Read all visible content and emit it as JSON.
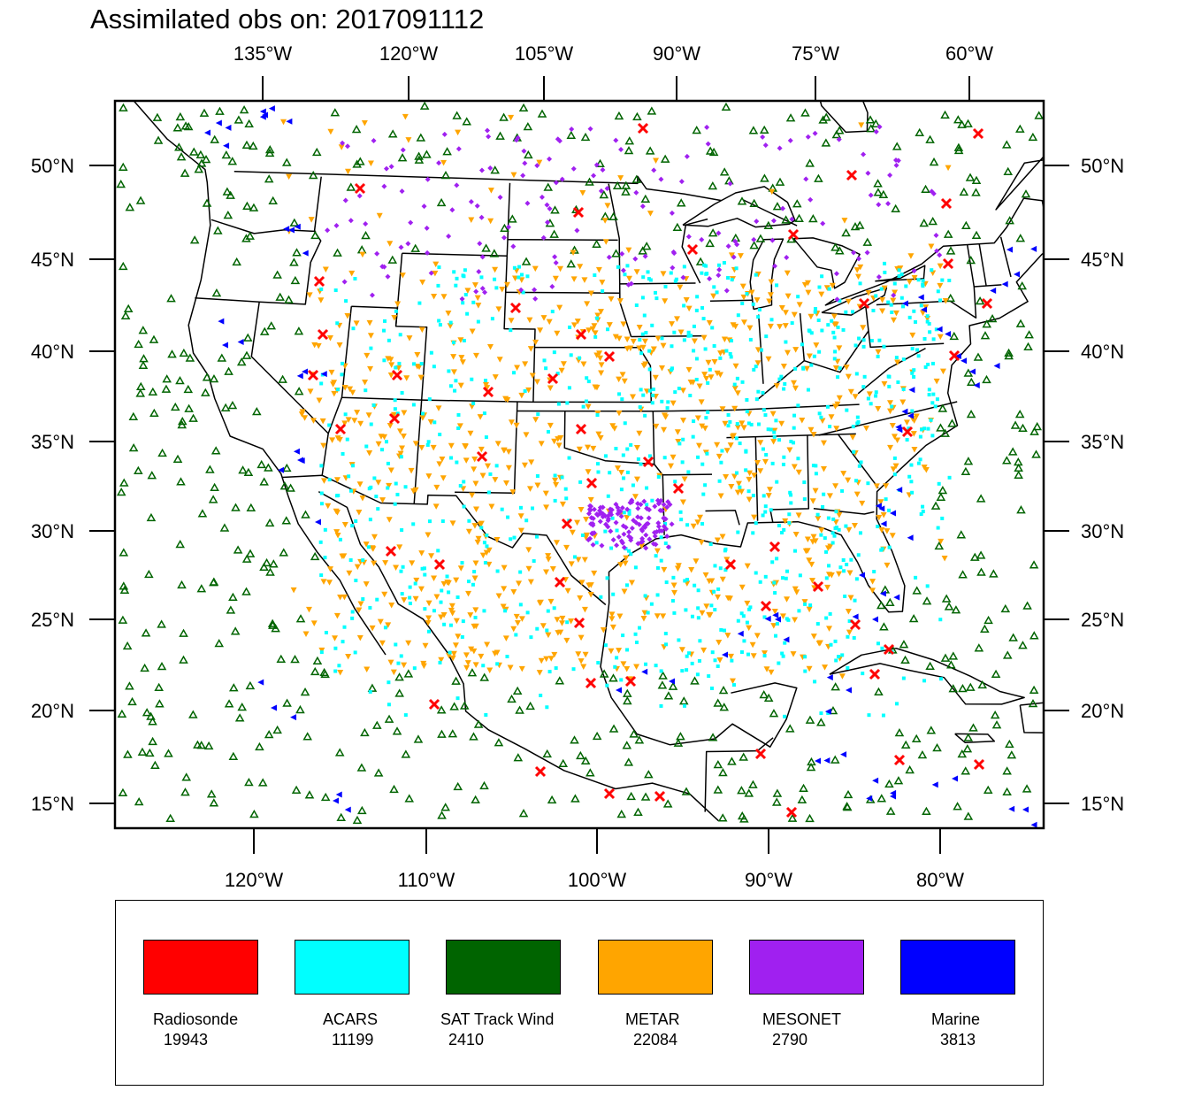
{
  "title": "Assimilated obs on: 2017091112",
  "axes": {
    "top_lon_labels": [
      "135°W",
      "120°W",
      "105°W",
      "90°W",
      "75°W",
      "60°W"
    ],
    "bottom_lon_labels": [
      "120°W",
      "110°W",
      "100°W",
      "90°W",
      "80°W"
    ],
    "lat_labels": [
      "50°N",
      "45°N",
      "40°N",
      "35°N",
      "30°N",
      "25°N",
      "20°N",
      "15°N"
    ],
    "lon_range": [
      -128,
      -74
    ],
    "lat_range": [
      14,
      54
    ]
  },
  "legend": {
    "items": [
      {
        "label": "Radiosonde",
        "count": "19943",
        "color": "#ff0000"
      },
      {
        "label": "ACARS",
        "count": "11199",
        "color": "#00ffff"
      },
      {
        "label": "SAT Track Wind",
        "count": "2410",
        "color": "#006400"
      },
      {
        "label": "METAR",
        "count": "22084",
        "color": "#ffa500"
      },
      {
        "label": "MESONET",
        "count": "2790",
        "color": "#a020f0"
      },
      {
        "label": "Marine",
        "count": "3813",
        "color": "#0000ff"
      }
    ]
  },
  "colors": {
    "radiosonde": "#ff0000",
    "acars": "#00ffff",
    "sat_track_wind": "#006400",
    "metar": "#ffa500",
    "mesonet": "#a020f0",
    "marine": "#0000ff"
  }
}
